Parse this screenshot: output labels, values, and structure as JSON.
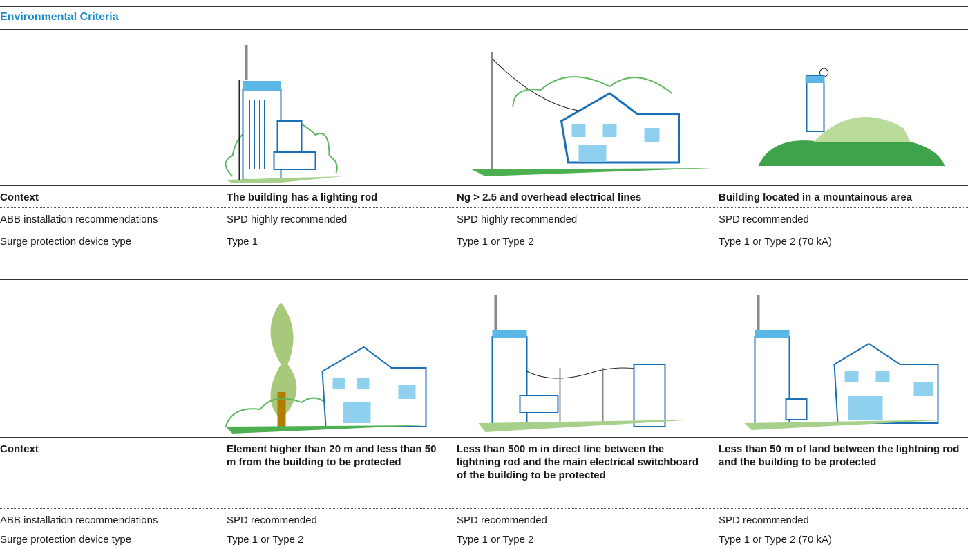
{
  "title": "Environmental Criteria",
  "tables": [
    {
      "row_labels": [
        "Context",
        "ABB installation recommendations",
        "Surge protection device type"
      ],
      "columns": [
        {
          "context": "The building has a lighting rod",
          "recommendation": "SPD highly recommended",
          "device_type": "Type 1"
        },
        {
          "context": "Ng > 2.5 and overhead electrical lines",
          "recommendation": "SPD highly recommended",
          "device_type": "Type 1 or Type 2"
        },
        {
          "context": "Building located in a mountainous area",
          "recommendation": "SPD recommended",
          "device_type": "Type 1 or Type 2 (70 kA)"
        }
      ]
    },
    {
      "row_labels": [
        "Context",
        "ABB installation recommendations",
        "Surge protection device type"
      ],
      "columns": [
        {
          "context": "Element higher than 20 m and less than 50 m from the building to be protected",
          "recommendation": "SPD recommended",
          "device_type": "Type 1 or Type 2"
        },
        {
          "context": "Less than 500 m in direct line between the lightning rod and the main electrical switchboard of the building to be protected",
          "recommendation": "SPD recommended",
          "device_type": "Type 1 or Type 2"
        },
        {
          "context": "Less than 50 m of land between the lightning rod and the building to be protected",
          "recommendation": "SPD recommended",
          "device_type": "Type 1 or Type 2 (70 kA)"
        }
      ]
    }
  ]
}
